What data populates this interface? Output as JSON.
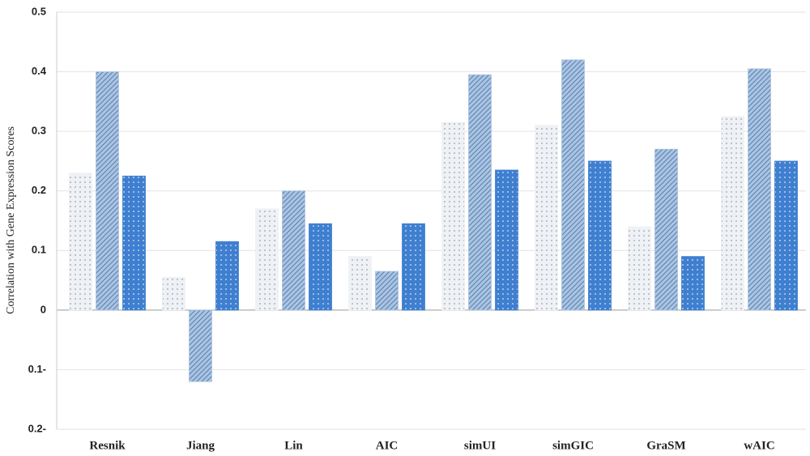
{
  "chart_data": {
    "type": "bar",
    "y_label": "Correlation with Gene Expression Scores",
    "categories": [
      "Resnik",
      "Jiang",
      "Lin",
      "AIC",
      "simUI",
      "simGIC",
      "GraSM",
      "wAIC"
    ],
    "series": [
      {
        "color": "#eef1f5",
        "values": [
          0.23,
          0.055,
          0.17,
          0.09,
          0.315,
          0.31,
          0.14,
          0.325
        ]
      },
      {
        "color": "#a9c4e4",
        "values": [
          0.4,
          -0.12,
          0.2,
          0.065,
          0.395,
          0.42,
          0.27,
          0.405
        ]
      },
      {
        "color": "#3f7fd0",
        "values": [
          0.225,
          0.115,
          0.145,
          0.145,
          0.235,
          0.25,
          0.09,
          0.25
        ]
      }
    ],
    "ylim": [
      -0.2,
      0.5
    ],
    "yticks": [
      {
        "value": -0.2,
        "label": "0.2-"
      },
      {
        "value": -0.1,
        "label": "0.1-"
      },
      0,
      0.1,
      0.2,
      0.3,
      0.4,
      0.5
    ],
    "grid": true
  }
}
